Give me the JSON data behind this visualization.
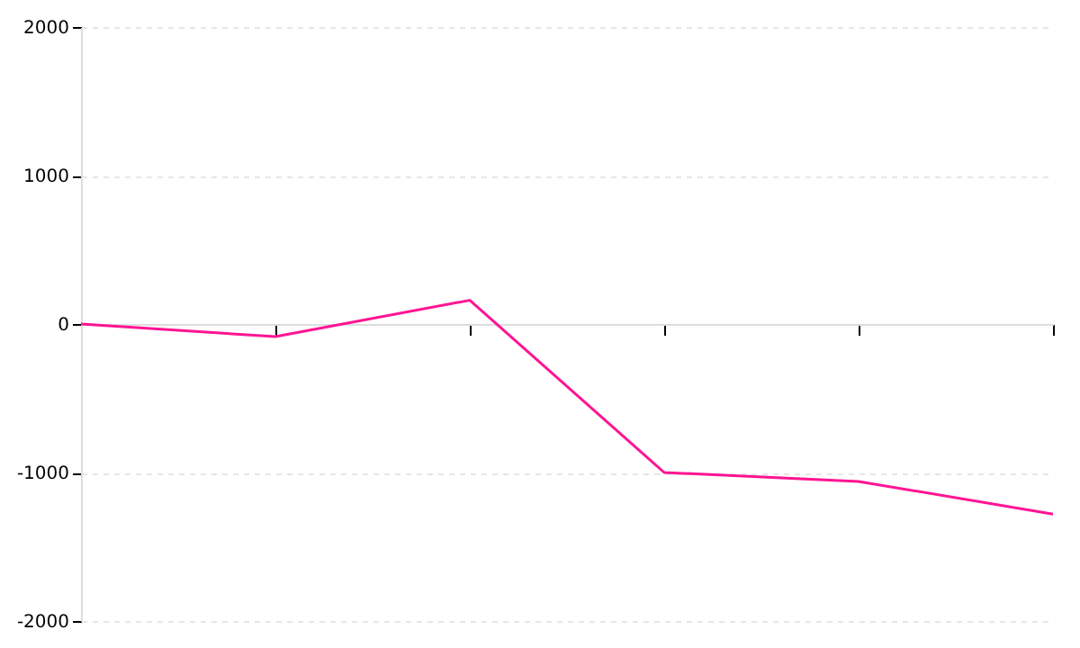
{
  "chart_data": {
    "type": "line",
    "categories": [
      null,
      null,
      null,
      null,
      null,
      null
    ],
    "series": [
      {
        "color": "#ff1493",
        "values": [
          0,
          -85,
          160,
          -1000,
          -1060,
          -1280
        ]
      }
    ],
    "ylim": [
      -2000,
      2000
    ],
    "yticks": [
      -2000,
      -1000,
      0,
      1000,
      2000
    ],
    "grid": "y",
    "marker": "none",
    "line_style": "solid",
    "tick_labels": "y"
  }
}
